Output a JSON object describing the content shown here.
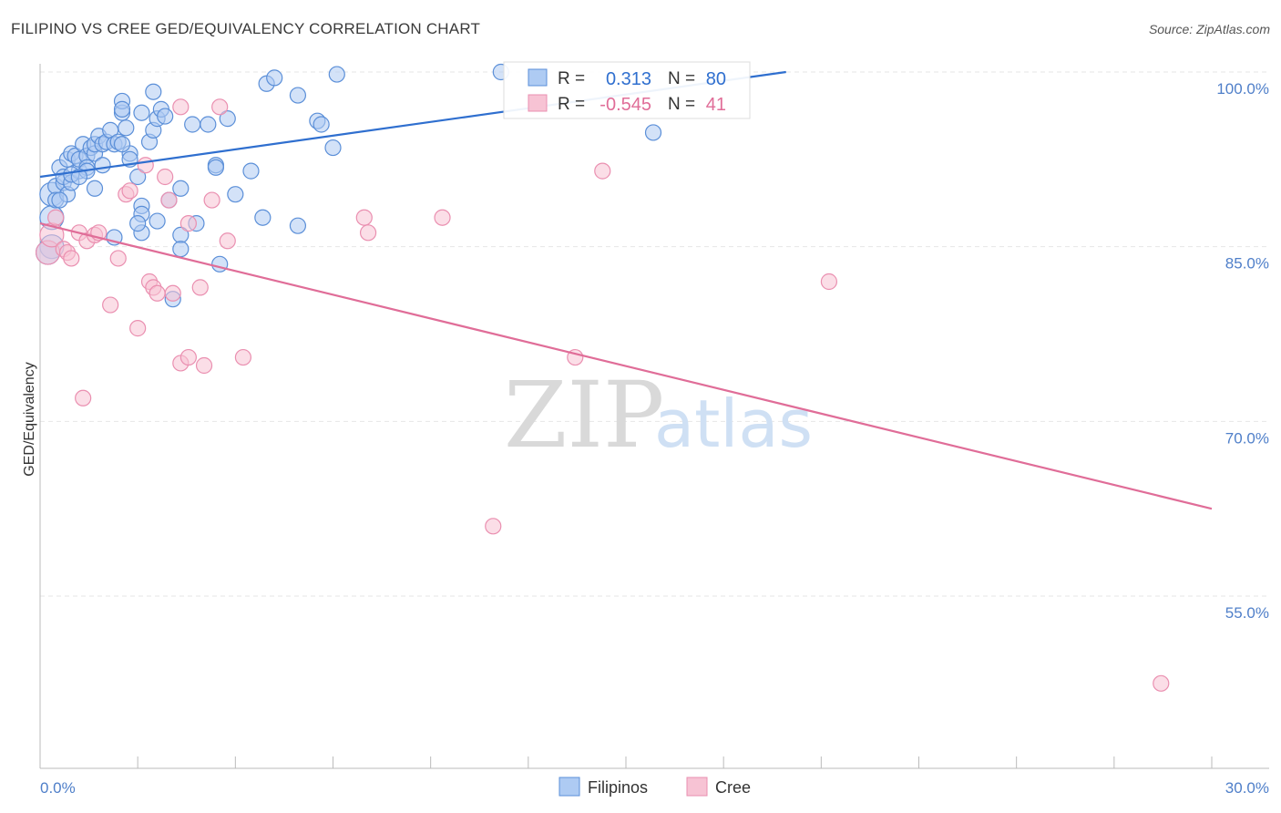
{
  "title": "FILIPINO VS CREE GED/EQUIVALENCY CORRELATION CHART",
  "source": "Source: ZipAtlas.com",
  "watermark": {
    "zip": "ZIP",
    "atlas": "atlas"
  },
  "colors": {
    "blue": "#2f6fcf",
    "blue_fill": "#aecbf3",
    "blue_stroke": "#5b8fd8",
    "pink": "#e06d98",
    "pink_fill": "#f7c3d4",
    "pink_stroke": "#ea8fb0",
    "grid": "#e6e6e6",
    "axis_label": "#4f7fc9"
  },
  "chart_data": {
    "type": "scatter",
    "title": "FILIPINO VS CREE GED/EQUIVALENCY CORRELATION CHART",
    "xlabel": "",
    "ylabel": "GED/Equivalency",
    "xlim": [
      0,
      30
    ],
    "ylim": [
      40,
      101
    ],
    "x_tick_labels": [
      "0.0%",
      "30.0%"
    ],
    "y_ticks": [
      {
        "value": 100,
        "label": "100.0%"
      },
      {
        "value": 85,
        "label": "85.0%"
      },
      {
        "value": 70,
        "label": "70.0%"
      },
      {
        "value": 55,
        "label": "55.0%"
      }
    ],
    "grid": true,
    "legend": {
      "position": "top-center",
      "entries": [
        {
          "name": "Filipinos",
          "r_label": "R =",
          "r": "0.313",
          "n_label": "N =",
          "n": "80"
        },
        {
          "name": "Cree",
          "r_label": "R =",
          "r": "-0.545",
          "n_label": "N =",
          "n": "41"
        }
      ]
    },
    "series": [
      {
        "name": "Filipinos",
        "color": "blue",
        "trend": {
          "x": [
            0,
            19.1
          ],
          "y": [
            91.0,
            100.0
          ]
        },
        "points": [
          [
            0.3,
            85.0
          ],
          [
            0.2,
            84.5
          ],
          [
            0.3,
            87.5
          ],
          [
            0.3,
            89.5
          ],
          [
            0.4,
            90.2
          ],
          [
            0.4,
            89.0
          ],
          [
            0.5,
            91.8
          ],
          [
            0.6,
            90.5
          ],
          [
            0.6,
            91.0
          ],
          [
            0.7,
            92.5
          ],
          [
            0.7,
            89.5
          ],
          [
            0.8,
            93.0
          ],
          [
            0.8,
            90.5
          ],
          [
            0.9,
            92.8
          ],
          [
            1.0,
            91.5
          ],
          [
            1.0,
            92.5
          ],
          [
            1.1,
            93.8
          ],
          [
            1.2,
            92.8
          ],
          [
            1.2,
            91.8
          ],
          [
            1.3,
            93.5
          ],
          [
            1.4,
            93.0
          ],
          [
            1.4,
            93.8
          ],
          [
            1.5,
            94.5
          ],
          [
            1.6,
            92.0
          ],
          [
            1.6,
            93.8
          ],
          [
            1.7,
            94.0
          ],
          [
            1.8,
            95.0
          ],
          [
            1.9,
            93.8
          ],
          [
            2.0,
            94.0
          ],
          [
            2.1,
            96.5
          ],
          [
            2.2,
            95.2
          ],
          [
            2.3,
            93.0
          ],
          [
            2.3,
            92.5
          ],
          [
            2.5,
            91.0
          ],
          [
            2.6,
            96.5
          ],
          [
            2.8,
            94.0
          ],
          [
            2.9,
            95.0
          ],
          [
            3.0,
            96.0
          ],
          [
            1.4,
            90.0
          ],
          [
            2.1,
            97.5
          ],
          [
            2.1,
            96.8
          ],
          [
            2.9,
            98.3
          ],
          [
            3.1,
            96.8
          ],
          [
            3.2,
            96.2
          ],
          [
            3.3,
            89.0
          ],
          [
            3.6,
            90.0
          ],
          [
            3.9,
            95.5
          ],
          [
            4.3,
            95.5
          ],
          [
            4.5,
            92.0
          ],
          [
            4.8,
            96.0
          ],
          [
            5.0,
            89.5
          ],
          [
            5.4,
            91.5
          ],
          [
            5.7,
            87.5
          ],
          [
            5.8,
            99.0
          ],
          [
            6.0,
            99.5
          ],
          [
            6.6,
            98.0
          ],
          [
            7.1,
            95.8
          ],
          [
            7.2,
            95.5
          ],
          [
            7.5,
            93.5
          ],
          [
            7.6,
            99.8
          ],
          [
            11.8,
            100.0
          ],
          [
            15.7,
            94.8
          ],
          [
            2.6,
            88.5
          ],
          [
            2.6,
            87.8
          ],
          [
            2.6,
            86.2
          ],
          [
            1.9,
            85.8
          ],
          [
            3.6,
            86.0
          ],
          [
            3.6,
            84.8
          ],
          [
            4.0,
            87.0
          ],
          [
            4.6,
            83.5
          ],
          [
            3.4,
            80.5
          ],
          [
            6.6,
            86.8
          ],
          [
            3.0,
            87.2
          ],
          [
            4.5,
            91.8
          ],
          [
            0.8,
            91.2
          ],
          [
            1.2,
            91.5
          ],
          [
            2.5,
            87.0
          ],
          [
            1.0,
            91.0
          ],
          [
            0.5,
            89.0
          ],
          [
            2.1,
            93.8
          ]
        ]
      },
      {
        "name": "Cree",
        "color": "pink",
        "trend": {
          "x": [
            0,
            30
          ],
          "y": [
            87.0,
            62.5
          ]
        },
        "points": [
          [
            0.2,
            84.5
          ],
          [
            0.3,
            86.0
          ],
          [
            0.4,
            87.5
          ],
          [
            0.6,
            84.8
          ],
          [
            0.7,
            84.5
          ],
          [
            0.8,
            84.0
          ],
          [
            1.0,
            86.2
          ],
          [
            1.2,
            85.5
          ],
          [
            1.4,
            86.0
          ],
          [
            1.5,
            86.2
          ],
          [
            1.1,
            72.0
          ],
          [
            1.8,
            80.0
          ],
          [
            2.0,
            84.0
          ],
          [
            2.2,
            89.5
          ],
          [
            2.3,
            89.8
          ],
          [
            2.5,
            78.0
          ],
          [
            2.7,
            92.0
          ],
          [
            2.8,
            82.0
          ],
          [
            2.9,
            81.5
          ],
          [
            3.0,
            81.0
          ],
          [
            3.2,
            91.0
          ],
          [
            3.3,
            89.0
          ],
          [
            3.4,
            81.0
          ],
          [
            3.6,
            75.0
          ],
          [
            3.8,
            75.5
          ],
          [
            3.8,
            87.0
          ],
          [
            4.1,
            81.5
          ],
          [
            4.2,
            74.8
          ],
          [
            4.4,
            89.0
          ],
          [
            4.6,
            97.0
          ],
          [
            4.8,
            85.5
          ],
          [
            5.2,
            75.5
          ],
          [
            8.3,
            87.5
          ],
          [
            8.4,
            86.2
          ],
          [
            10.3,
            87.5
          ],
          [
            11.6,
            61.0
          ],
          [
            13.7,
            75.5
          ],
          [
            14.4,
            91.5
          ],
          [
            20.2,
            82.0
          ],
          [
            28.7,
            47.5
          ],
          [
            3.6,
            97.0
          ]
        ]
      }
    ]
  },
  "bottom_legend": [
    {
      "label": "Filipinos",
      "color": "blue"
    },
    {
      "label": "Cree",
      "color": "pink"
    }
  ]
}
